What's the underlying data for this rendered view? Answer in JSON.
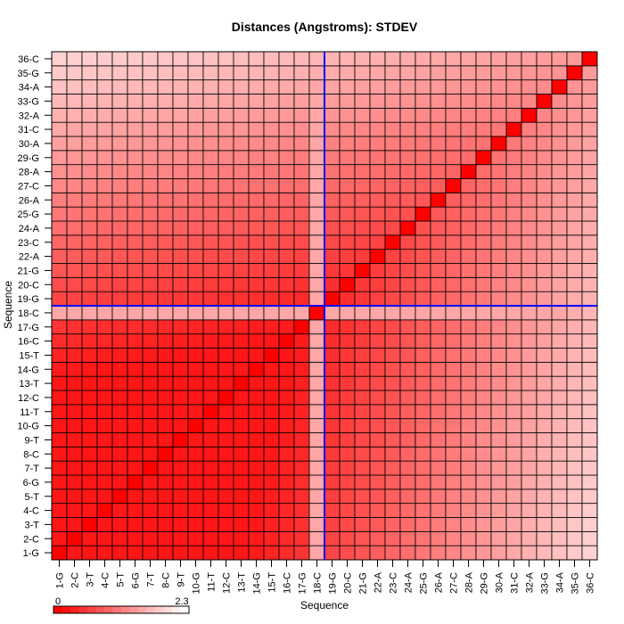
{
  "chart_data": {
    "type": "heatmap",
    "title": "Distances (Angstroms):  STDEV",
    "xlabel": "Sequence",
    "ylabel": "Sequence",
    "labels": [
      "1-G",
      "2-C",
      "3-T",
      "4-C",
      "5-T",
      "6-G",
      "7-T",
      "8-C",
      "9-T",
      "10-G",
      "11-T",
      "12-C",
      "13-T",
      "14-G",
      "15-T",
      "16-C",
      "17-G",
      "18-C",
      "19-G",
      "20-C",
      "21-G",
      "22-A",
      "23-C",
      "24-A",
      "25-G",
      "26-A",
      "27-C",
      "28-A",
      "29-G",
      "30-A",
      "31-C",
      "32-A",
      "33-G",
      "34-A",
      "35-G",
      "36-C"
    ],
    "value_model": "std(i,j) estimated by eye from cell shade; rows/columns indexed by labels; diagonal = 0",
    "colorbar": {
      "min": 0,
      "max": 2.3,
      "min_label": "0",
      "max_label": "2.3",
      "low_color": "#ff0000",
      "high_color": "#ffffff"
    },
    "highlight": {
      "row": "18-C",
      "col": "18-C",
      "color": "#0000ff"
    },
    "grid": true
  }
}
